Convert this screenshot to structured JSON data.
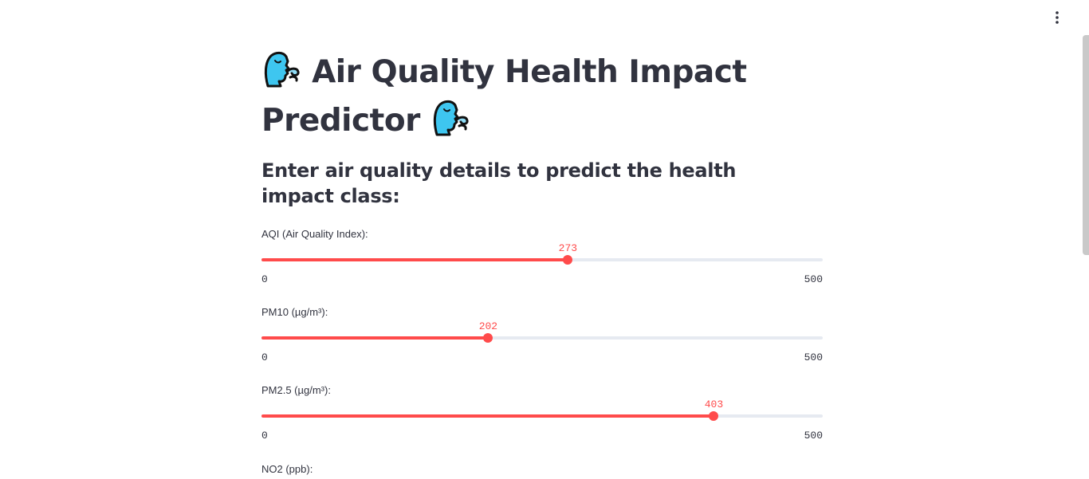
{
  "header": {
    "menu_icon": "kebab-menu-icon"
  },
  "page": {
    "title_emoji": "face-exhaling-icon",
    "title_text": "Air Quality Health Impact Predictor",
    "subtitle": "Enter air quality details to predict the health impact class:"
  },
  "sliders": [
    {
      "label": "AQI (Air Quality Index):",
      "value": "273",
      "min": "0",
      "max": "500"
    },
    {
      "label": "PM10 (µg/m³):",
      "value": "202",
      "min": "0",
      "max": "500"
    },
    {
      "label": "PM2.5 (µg/m³):",
      "value": "403",
      "min": "0",
      "max": "500"
    }
  ],
  "next_field": {
    "label": "NO2 (ppb):"
  },
  "colors": {
    "accent": "#ff4b4b",
    "track": "#e6eaf1",
    "text": "#31333f"
  }
}
